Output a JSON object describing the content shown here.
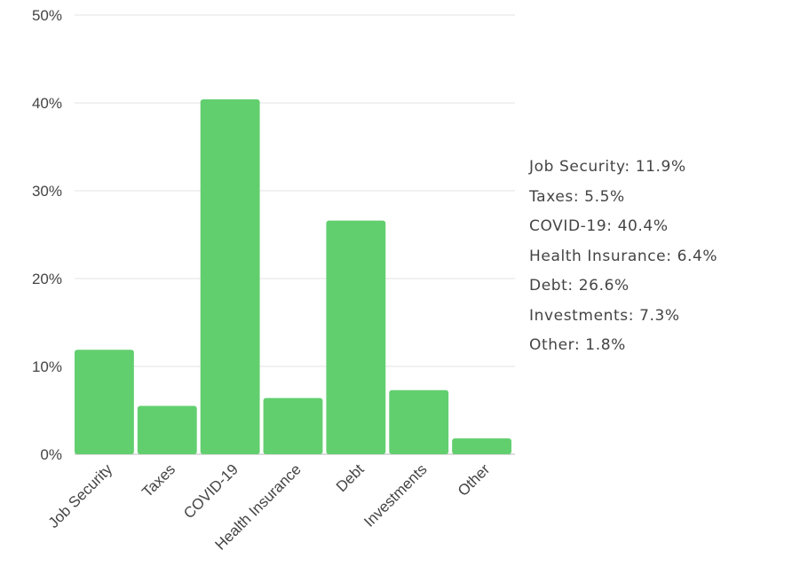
{
  "chart_data": {
    "type": "bar",
    "categories": [
      "Job Security",
      "Taxes",
      "COVID-19",
      "Health Insurance",
      "Debt",
      "Investments",
      "Other"
    ],
    "values": [
      11.9,
      5.5,
      40.4,
      6.4,
      26.6,
      7.3,
      1.8
    ],
    "ylim": [
      0,
      50
    ],
    "yticks": [
      "0%",
      "10%",
      "20%",
      "30%",
      "40%",
      "50%"
    ],
    "grid": true,
    "bar_color": "#62cf6f",
    "legend_placement": "right",
    "value_labels": [
      "Job Security: 11.9%",
      "Taxes: 5.5%",
      "COVID-19: 40.4%",
      "Health Insurance: 6.4%",
      "Debt: 26.6%",
      "Investments: 7.3%",
      "Other: 1.8%"
    ]
  }
}
